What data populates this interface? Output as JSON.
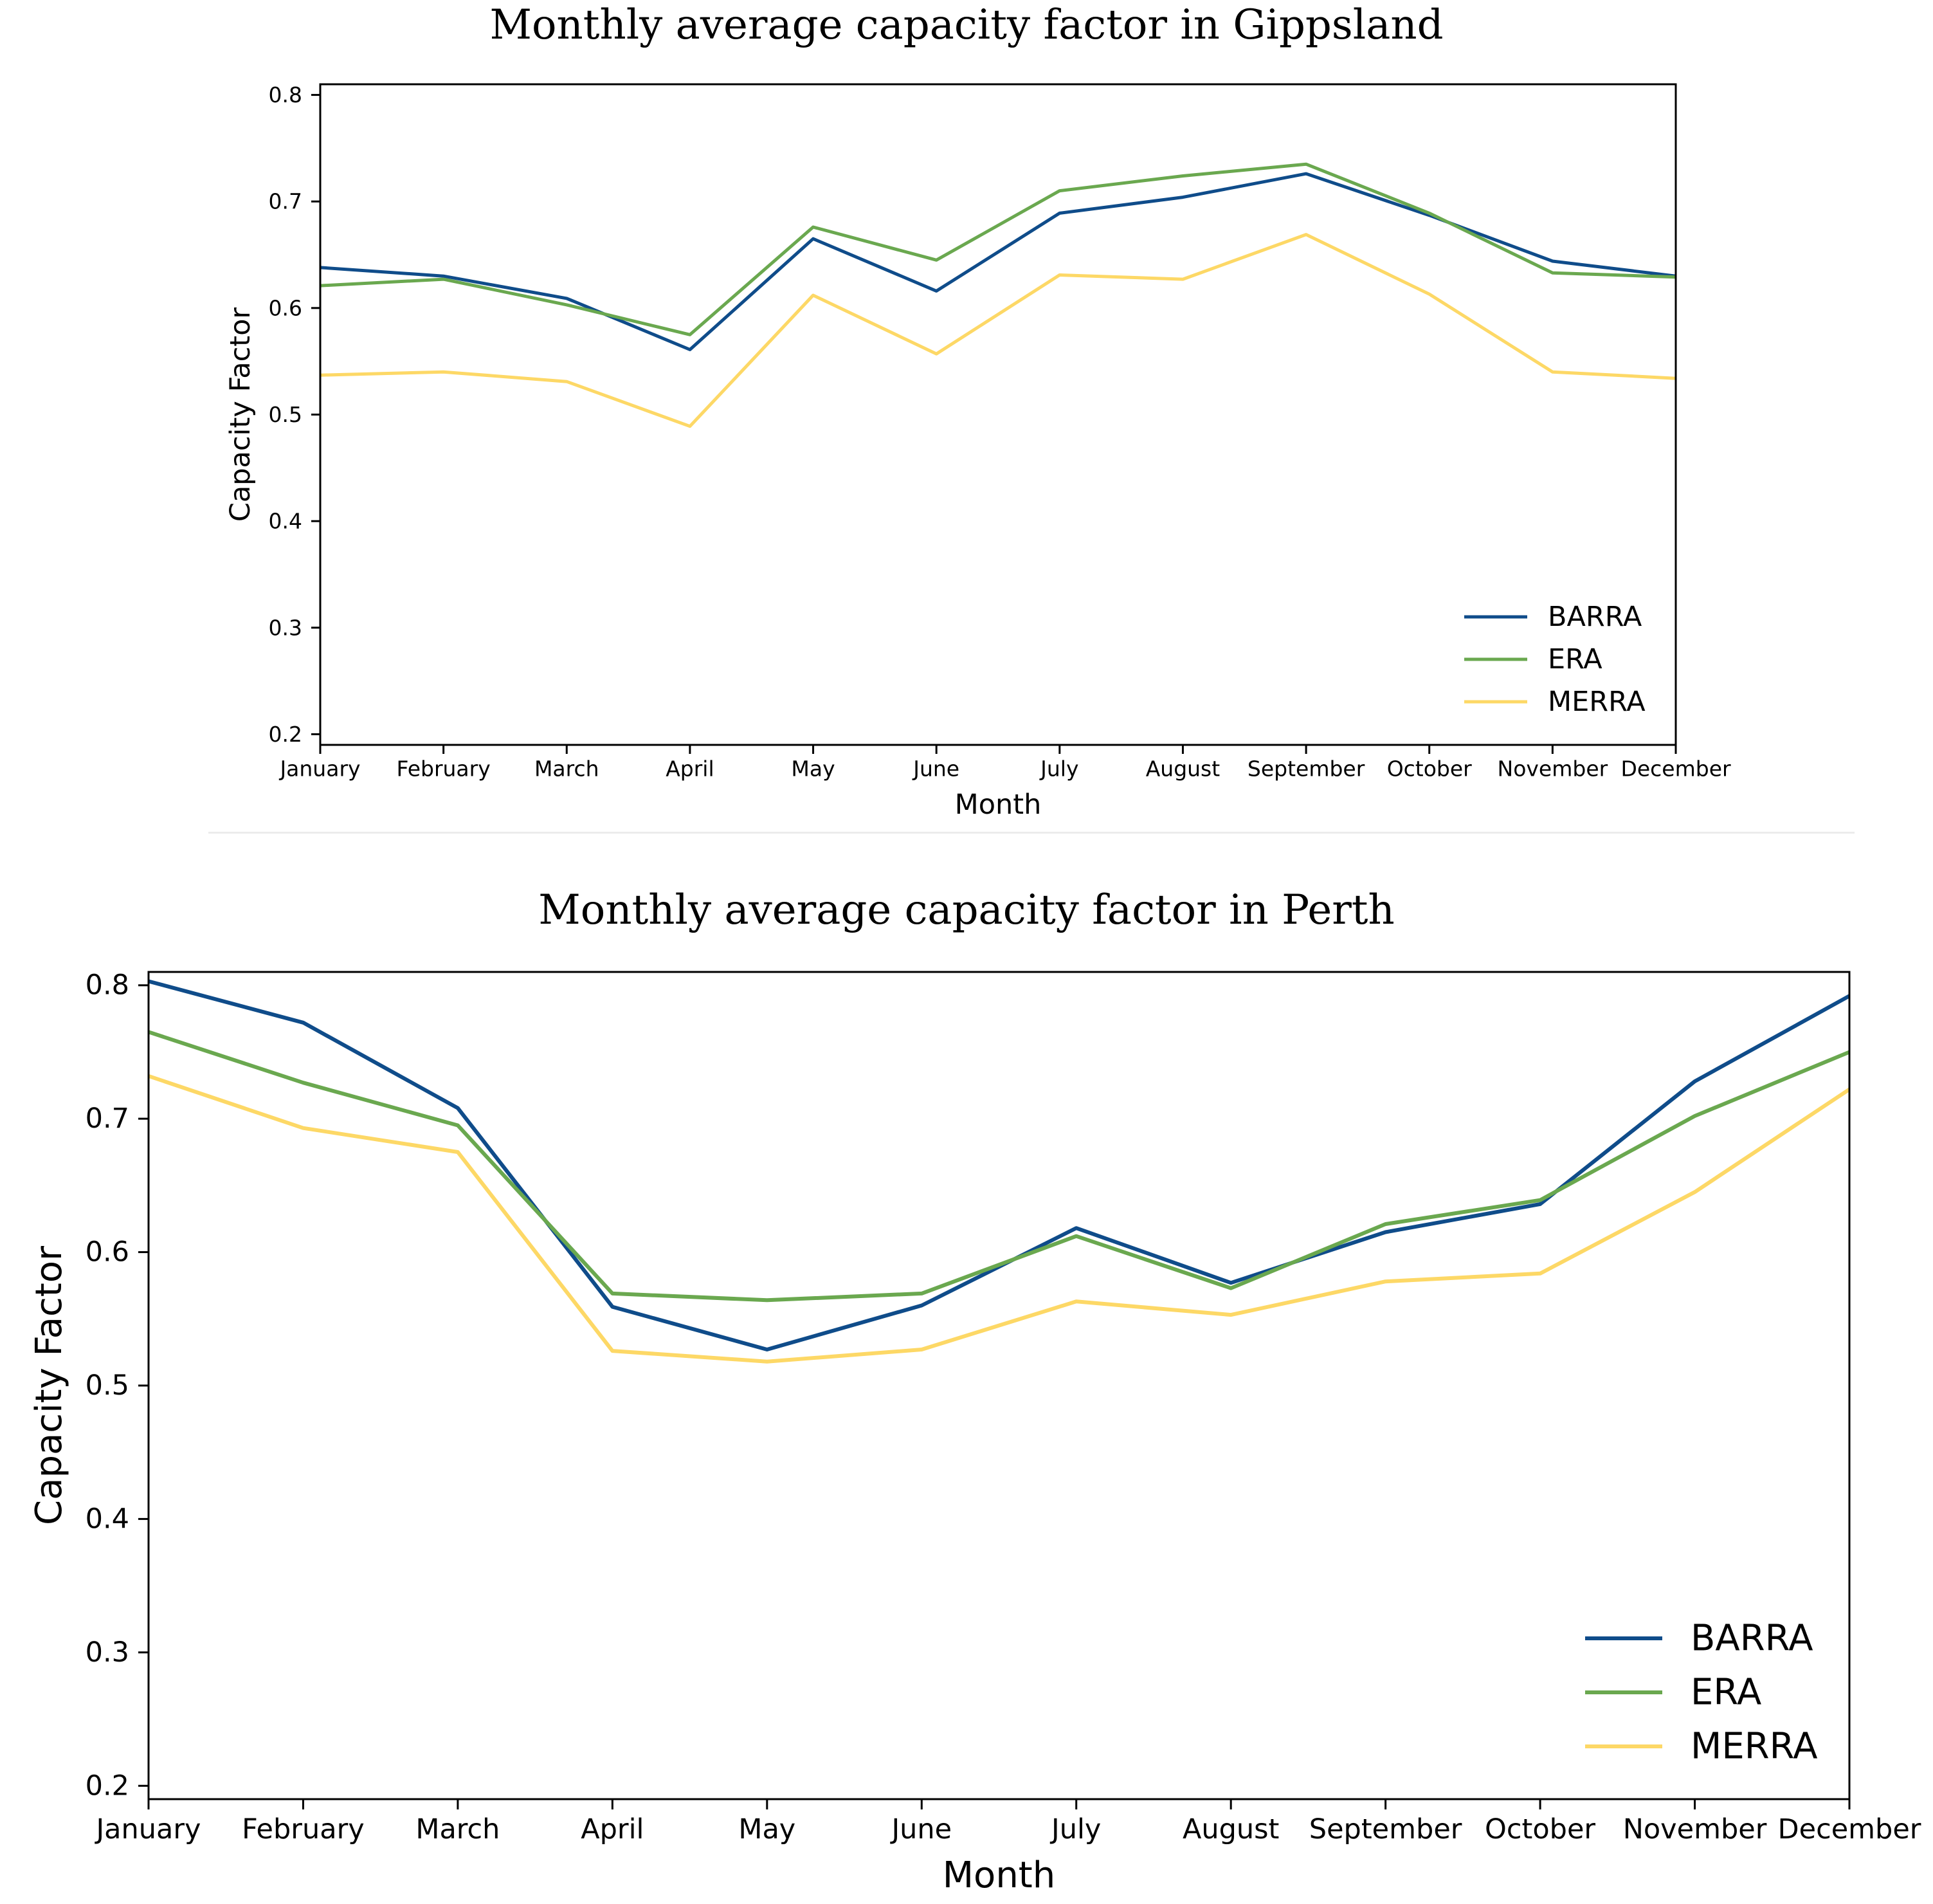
{
  "colors": {
    "BARRA": "#0f4c8a",
    "ERA": "#6aa84f",
    "MERRA": "#fdd866"
  },
  "chart_data": [
    {
      "type": "line",
      "title": "Monthly average capacity factor in Gippsland",
      "xlabel": "Month",
      "ylabel": "Capacity Factor",
      "categories": [
        "January",
        "February",
        "March",
        "April",
        "May",
        "June",
        "July",
        "August",
        "September",
        "October",
        "November",
        "December"
      ],
      "ylim": [
        0.19,
        0.81
      ],
      "yticks": [
        "0.2",
        "0.3",
        "0.4",
        "0.5",
        "0.6",
        "0.7",
        "0.8"
      ],
      "grid": false,
      "legend_position": "bottom-right",
      "series": [
        {
          "name": "BARRA",
          "values": [
            0.638,
            0.63,
            0.609,
            0.561,
            0.665,
            0.616,
            0.689,
            0.704,
            0.726,
            0.687,
            0.644,
            0.63
          ]
        },
        {
          "name": "ERA",
          "values": [
            0.621,
            0.627,
            0.603,
            0.575,
            0.676,
            0.645,
            0.71,
            0.724,
            0.735,
            0.689,
            0.633,
            0.629
          ]
        },
        {
          "name": "MERRA",
          "values": [
            0.537,
            0.54,
            0.531,
            0.489,
            0.612,
            0.557,
            0.631,
            0.627,
            0.669,
            0.613,
            0.54,
            0.534
          ]
        }
      ]
    },
    {
      "type": "line",
      "title": "Monthly average capacity factor in Perth",
      "xlabel": "Month",
      "ylabel": "Capacity Factor",
      "categories": [
        "January",
        "February",
        "March",
        "April",
        "May",
        "June",
        "July",
        "August",
        "September",
        "October",
        "November",
        "December"
      ],
      "ylim": [
        0.19,
        0.81
      ],
      "yticks": [
        "0.2",
        "0.3",
        "0.4",
        "0.5",
        "0.6",
        "0.7",
        "0.8"
      ],
      "grid": false,
      "legend_position": "bottom-right",
      "series": [
        {
          "name": "BARRA",
          "values": [
            0.803,
            0.772,
            0.708,
            0.559,
            0.527,
            0.56,
            0.618,
            0.577,
            0.615,
            0.636,
            0.728,
            0.792
          ]
        },
        {
          "name": "ERA",
          "values": [
            0.765,
            0.727,
            0.695,
            0.569,
            0.564,
            0.569,
            0.612,
            0.573,
            0.621,
            0.639,
            0.702,
            0.75
          ]
        },
        {
          "name": "MERRA",
          "values": [
            0.732,
            0.693,
            0.675,
            0.526,
            0.518,
            0.527,
            0.563,
            0.553,
            0.578,
            0.584,
            0.645,
            0.722
          ]
        }
      ]
    }
  ]
}
